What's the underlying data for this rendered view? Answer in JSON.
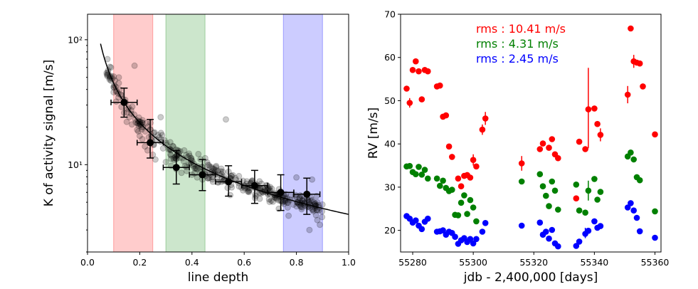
{
  "chart_data": [
    {
      "type": "scatter",
      "xlabel": "line depth",
      "ylabel": "K of activity signal [m/s]",
      "xscale": "linear",
      "yscale": "log",
      "xlim": [
        0.0,
        1.0
      ],
      "ylim": [
        2.0,
        160.0
      ],
      "xticks": [
        0.0,
        0.2,
        0.4,
        0.6,
        0.8,
        1.0
      ],
      "xtick_labels": [
        "0.0",
        "0.2",
        "0.4",
        "0.6",
        "0.8",
        "1.0"
      ],
      "yticks": [
        10,
        100
      ],
      "ytick_labels": [
        "10¹",
        "10²"
      ],
      "shaded_bands": [
        {
          "x0": 0.1,
          "x1": 0.25,
          "color": "#ff0000",
          "alpha": 0.2
        },
        {
          "x0": 0.3,
          "x1": 0.45,
          "color": "#008000",
          "alpha": 0.2
        },
        {
          "x0": 0.75,
          "x1": 0.9,
          "color": "#0000ff",
          "alpha": 0.2
        }
      ],
      "fit_curve": {
        "formula": "K = 4.0 / depth^1.05",
        "x_from": 0.05,
        "x_to": 1.0,
        "color": "#000000"
      },
      "binned_points": [
        {
          "x": 0.14,
          "y": 31.5,
          "xerr": 0.05,
          "ylo": 24.0,
          "yhi": 41.0
        },
        {
          "x": 0.24,
          "y": 15.0,
          "xerr": 0.05,
          "ylo": 11.3,
          "yhi": 23.0
        },
        {
          "x": 0.34,
          "y": 9.5,
          "xerr": 0.05,
          "ylo": 7.0,
          "yhi": 13.0
        },
        {
          "x": 0.44,
          "y": 8.3,
          "xerr": 0.05,
          "ylo": 6.2,
          "yhi": 11.0
        },
        {
          "x": 0.54,
          "y": 7.3,
          "xerr": 0.05,
          "ylo": 5.6,
          "yhi": 9.8
        },
        {
          "x": 0.64,
          "y": 6.8,
          "xerr": 0.05,
          "ylo": 4.9,
          "yhi": 9.0
        },
        {
          "x": 0.74,
          "y": 6.0,
          "xerr": 0.05,
          "ylo": 4.3,
          "yhi": 8.3
        },
        {
          "x": 0.84,
          "y": 5.8,
          "xerr": 0.05,
          "ylo": 4.0,
          "yhi": 7.8
        }
      ],
      "scatter_trend": {
        "description": "~400 grey semi-transparent points following the fit curve with ~20% log scatter",
        "x_from": 0.07,
        "x_to": 0.9,
        "color": "#000000",
        "alpha": 0.2
      },
      "scatter_points": [
        [
          0.09,
          60
        ],
        [
          0.1,
          42
        ],
        [
          0.1,
          38
        ],
        [
          0.11,
          32
        ],
        [
          0.12,
          45
        ],
        [
          0.12,
          50
        ],
        [
          0.13,
          29
        ],
        [
          0.13,
          36
        ],
        [
          0.14,
          26
        ],
        [
          0.15,
          22
        ],
        [
          0.16,
          24
        ],
        [
          0.17,
          21
        ],
        [
          0.18,
          62
        ],
        [
          0.19,
          19
        ],
        [
          0.2,
          17
        ],
        [
          0.2,
          22
        ],
        [
          0.21,
          16
        ],
        [
          0.22,
          14
        ],
        [
          0.23,
          13
        ],
        [
          0.24,
          15
        ],
        [
          0.25,
          12
        ],
        [
          0.26,
          11
        ],
        [
          0.28,
          24
        ],
        [
          0.3,
          10.5
        ],
        [
          0.32,
          9.8
        ],
        [
          0.34,
          9.2
        ],
        [
          0.36,
          8.6
        ],
        [
          0.38,
          8.9
        ],
        [
          0.4,
          8.3
        ],
        [
          0.42,
          7.9
        ],
        [
          0.44,
          7.6
        ],
        [
          0.46,
          7.8
        ],
        [
          0.48,
          7.3
        ],
        [
          0.5,
          7.2
        ],
        [
          0.52,
          7.4
        ],
        [
          0.53,
          23
        ],
        [
          0.55,
          6.9
        ],
        [
          0.58,
          6.7
        ],
        [
          0.6,
          6.8
        ],
        [
          0.62,
          6.5
        ],
        [
          0.64,
          6.6
        ],
        [
          0.66,
          6.3
        ],
        [
          0.68,
          6.1
        ],
        [
          0.7,
          6.2
        ],
        [
          0.72,
          5.9
        ],
        [
          0.74,
          6.0
        ],
        [
          0.76,
          5.8
        ],
        [
          0.78,
          5.7
        ],
        [
          0.8,
          5.5
        ],
        [
          0.82,
          5.6
        ],
        [
          0.84,
          5.4
        ],
        [
          0.86,
          5.2
        ],
        [
          0.88,
          3.6
        ],
        [
          0.88,
          5.0
        ],
        [
          0.89,
          3.3
        ],
        [
          0.85,
          3.0
        ],
        [
          0.82,
          4.4
        ],
        [
          0.86,
          7.6
        ],
        [
          0.8,
          7.9
        ],
        [
          0.77,
          3.9
        ]
      ]
    },
    {
      "type": "scatter",
      "xlabel": "jdb - 2,400,000 [days]",
      "ylabel": "RV [m/s]",
      "xlim": [
        55276,
        55362
      ],
      "ylim": [
        15,
        70
      ],
      "xticks": [
        55280,
        55300,
        55320,
        55340,
        55360
      ],
      "xtick_labels": [
        "55280",
        "55300",
        "55320",
        "55340",
        "55360"
      ],
      "yticks": [
        20,
        30,
        40,
        50,
        60,
        70
      ],
      "ytick_labels": [
        "20",
        "30",
        "40",
        "50",
        "60",
        "70"
      ],
      "annotations": [
        {
          "text": "rms : 10.41 m/s",
          "color": "#ff0000"
        },
        {
          "text": "rms : 4.31 m/s",
          "color": "#008000"
        },
        {
          "text": "rms : 2.45 m/s",
          "color": "#0000ff"
        }
      ],
      "series": [
        {
          "name": "red",
          "color": "#ff0000",
          "points": [
            [
              55278,
              52.8
            ],
            [
              55279,
              49.5
            ],
            [
              55280,
              57.1
            ],
            [
              55281,
              59.1
            ],
            [
              55282,
              56.8
            ],
            [
              55283,
              50.3
            ],
            [
              55284,
              57.1
            ],
            [
              55285,
              56.8
            ],
            [
              55288,
              53.3
            ],
            [
              55289,
              53.5
            ],
            [
              55290,
              46.3
            ],
            [
              55291,
              46.6
            ],
            [
              55292,
              39.4
            ],
            [
              55293,
              37.0
            ],
            [
              55295,
              32.0
            ],
            [
              55296,
              30.2
            ],
            [
              55297,
              32.6
            ],
            [
              55298,
              32.8
            ],
            [
              55299,
              32.2
            ],
            [
              55300,
              36.3
            ],
            [
              55301,
              34.8
            ],
            [
              55303,
              43.3
            ],
            [
              55304,
              45.9
            ],
            [
              55316,
              35.5
            ],
            [
              55322,
              38.8
            ],
            [
              55323,
              40.1
            ],
            [
              55325,
              39.1
            ],
            [
              55326,
              41.1
            ],
            [
              55327,
              37.6
            ],
            [
              55328,
              36.7
            ],
            [
              55334,
              27.4
            ],
            [
              55335,
              40.5
            ],
            [
              55337,
              38.8
            ],
            [
              55338,
              48.0
            ],
            [
              55340,
              48.2
            ],
            [
              55341,
              44.6
            ],
            [
              55342,
              42.1
            ],
            [
              55351,
              51.4
            ],
            [
              55352,
              66.7
            ],
            [
              55353,
              59.1
            ],
            [
              55354,
              58.8
            ],
            [
              55355,
              58.6
            ],
            [
              55356,
              53.3
            ],
            [
              55360,
              42.2
            ]
          ],
          "error_bars": [
            {
              "x": 55279,
              "lo": 48.4,
              "hi": 50.6
            },
            {
              "x": 55304,
              "lo": 44.4,
              "hi": 47.4
            },
            {
              "x": 55303,
              "lo": 42.1,
              "hi": 44.5
            },
            {
              "x": 55316,
              "lo": 33.8,
              "hi": 37.2
            },
            {
              "x": 55338,
              "lo": 39.0,
              "hi": 57.6
            },
            {
              "x": 55342,
              "lo": 40.6,
              "hi": 43.6
            },
            {
              "x": 55351,
              "lo": 49.4,
              "hi": 53.4
            },
            {
              "x": 55353,
              "lo": 57.6,
              "hi": 60.6
            },
            {
              "x": 55300,
              "lo": 35.0,
              "hi": 37.6
            }
          ]
        },
        {
          "name": "green",
          "color": "#008000",
          "points": [
            [
              55278,
              34.8
            ],
            [
              55279,
              34.9
            ],
            [
              55280,
              33.5
            ],
            [
              55281,
              33.0
            ],
            [
              55282,
              34.7
            ],
            [
              55283,
              32.9
            ],
            [
              55284,
              34.0
            ],
            [
              55285,
              32.0
            ],
            [
              55288,
              32.0
            ],
            [
              55289,
              30.3
            ],
            [
              55290,
              31.5
            ],
            [
              55291,
              29.8
            ],
            [
              55292,
              29.1
            ],
            [
              55293,
              29.4
            ],
            [
              55294,
              23.6
            ],
            [
              55295,
              23.5
            ],
            [
              55296,
              26.4
            ],
            [
              55297,
              28.1
            ],
            [
              55298,
              23.8
            ],
            [
              55299,
              27.0
            ],
            [
              55300,
              25.3
            ],
            [
              55301,
              22.1
            ],
            [
              55316,
              31.3
            ],
            [
              55322,
              33.0
            ],
            [
              55323,
              30.2
            ],
            [
              55324,
              28.0
            ],
            [
              55325,
              25.6
            ],
            [
              55326,
              31.3
            ],
            [
              55327,
              29.2
            ],
            [
              55328,
              24.8
            ],
            [
              55334,
              30.6
            ],
            [
              55335,
              24.6
            ],
            [
              55337,
              24.1
            ],
            [
              55338,
              29.2
            ],
            [
              55340,
              31.9
            ],
            [
              55341,
              27.1
            ],
            [
              55342,
              28.9
            ],
            [
              55351,
              37.1
            ],
            [
              55352,
              38.0
            ],
            [
              55353,
              36.4
            ],
            [
              55354,
              32.3
            ],
            [
              55355,
              31.6
            ],
            [
              55360,
              24.4
            ]
          ],
          "error_bars": [
            {
              "x": 55338,
              "lo": 26.9,
              "hi": 31.5
            }
          ]
        },
        {
          "name": "blue",
          "color": "#0000ff",
          "points": [
            [
              55278,
              23.3
            ],
            [
              55279,
              22.7
            ],
            [
              55280,
              21.8
            ],
            [
              55281,
              22.3
            ],
            [
              55282,
              21.1
            ],
            [
              55283,
              20.3
            ],
            [
              55284,
              22.0
            ],
            [
              55285,
              22.7
            ],
            [
              55288,
              19.7
            ],
            [
              55289,
              19.8
            ],
            [
              55290,
              20.0
            ],
            [
              55291,
              19.0
            ],
            [
              55292,
              19.7
            ],
            [
              55293,
              19.4
            ],
            [
              55294,
              18.5
            ],
            [
              55295,
              16.9
            ],
            [
              55296,
              17.7
            ],
            [
              55297,
              18.2
            ],
            [
              55298,
              17.3
            ],
            [
              55299,
              18.0
            ],
            [
              55300,
              17.0
            ],
            [
              55301,
              18.0
            ],
            [
              55303,
              19.7
            ],
            [
              55304,
              21.7
            ],
            [
              55316,
              21.1
            ],
            [
              55322,
              21.8
            ],
            [
              55323,
              19.0
            ],
            [
              55324,
              19.7
            ],
            [
              55325,
              18.1
            ],
            [
              55326,
              20.1
            ],
            [
              55327,
              17.0
            ],
            [
              55328,
              16.3
            ],
            [
              55334,
              16.4
            ],
            [
              55335,
              17.4
            ],
            [
              55337,
              19.2
            ],
            [
              55338,
              19.9
            ],
            [
              55340,
              22.1
            ],
            [
              55341,
              20.6
            ],
            [
              55342,
              21.0
            ],
            [
              55351,
              25.3
            ],
            [
              55352,
              26.3
            ],
            [
              55353,
              24.6
            ],
            [
              55354,
              22.9
            ],
            [
              55355,
              19.8
            ],
            [
              55360,
              18.3
            ]
          ],
          "error_bars": [
            {
              "x": 55337,
              "lo": 18.2,
              "hi": 20.6
            }
          ]
        }
      ]
    }
  ]
}
